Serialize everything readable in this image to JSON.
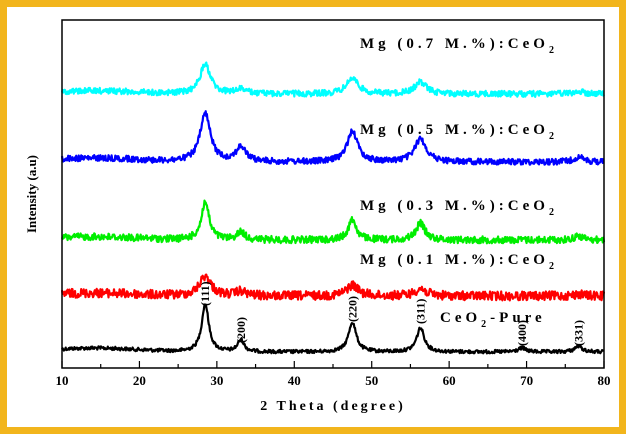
{
  "chart_data": {
    "type": "line",
    "title": "",
    "xlabel": "2 Theta (degree)",
    "ylabel": "Intensity (a.u)",
    "xlim": [
      10,
      80
    ],
    "x_ticks": [
      "10",
      "20",
      "30",
      "40",
      "50",
      "60",
      "70",
      "80"
    ],
    "y_ticks_shown": false,
    "grid": false,
    "legend": "inline labels above each trace",
    "peak_positions": [
      28.5,
      33.1,
      47.5,
      56.3,
      69.4,
      76.7
    ],
    "series": [
      {
        "name": "CeO2-Pure",
        "label_main": "CeO",
        "label_sub": "2",
        "label_tail": "-Pure",
        "color": "#000000",
        "peaks": [
          [
            28.5,
            1.0,
            0.55
          ],
          [
            33.1,
            0.25,
            0.5
          ],
          [
            47.5,
            0.62,
            0.6
          ],
          [
            56.3,
            0.5,
            0.6
          ],
          [
            69.4,
            0.08,
            0.6
          ],
          [
            76.7,
            0.12,
            0.6
          ]
        ]
      },
      {
        "name": "Mg (0.1 M.%):CeO2",
        "label_main": "Mg (0.1 M.%):CeO",
        "label_sub": "2",
        "label_tail": "",
        "color": "#ff0000",
        "peaks": [
          [
            28.5,
            0.55,
            0.9
          ],
          [
            33.1,
            0.12,
            0.8
          ],
          [
            47.5,
            0.3,
            0.9
          ],
          [
            56.3,
            0.2,
            0.9
          ],
          [
            76.7,
            0.05,
            0.8
          ]
        ]
      },
      {
        "name": "Mg (0.3 M.%):CeO2",
        "label_main": "Mg (0.3 M.%):CeO",
        "label_sub": "2",
        "label_tail": "",
        "color": "#00ee00",
        "peaks": [
          [
            28.5,
            0.95,
            0.6
          ],
          [
            33.1,
            0.2,
            0.6
          ],
          [
            47.5,
            0.52,
            0.6
          ],
          [
            56.3,
            0.42,
            0.7
          ],
          [
            76.7,
            0.1,
            0.7
          ]
        ]
      },
      {
        "name": "Mg (0.5 M.%):CeO2",
        "label_main": "Mg (0.5 M.%):CeO",
        "label_sub": "2",
        "label_tail": "",
        "color": "#0000ff",
        "peaks": [
          [
            28.5,
            1.0,
            0.8
          ],
          [
            33.1,
            0.3,
            0.8
          ],
          [
            47.5,
            0.65,
            0.8
          ],
          [
            56.3,
            0.48,
            0.9
          ],
          [
            76.7,
            0.1,
            0.8
          ]
        ]
      },
      {
        "name": "Mg (0.7 M.%):CeO2",
        "label_main": "Mg (0.7 M.%):CeO",
        "label_sub": "2",
        "label_tail": "",
        "color": "#00ffff",
        "peaks": [
          [
            28.5,
            0.75,
            0.8
          ],
          [
            33.1,
            0.12,
            0.8
          ],
          [
            47.5,
            0.4,
            0.9
          ],
          [
            56.3,
            0.3,
            0.9
          ],
          [
            76.7,
            0.06,
            0.8
          ]
        ]
      }
    ],
    "peak_labels": [
      {
        "text": "(111)",
        "x": 28.5
      },
      {
        "text": "(200)",
        "x": 33.1
      },
      {
        "text": "(220)",
        "x": 47.5
      },
      {
        "text": "(311)",
        "x": 56.3
      },
      {
        "text": "(400)",
        "x": 69.4
      },
      {
        "text": "(331)",
        "x": 76.7
      }
    ]
  }
}
